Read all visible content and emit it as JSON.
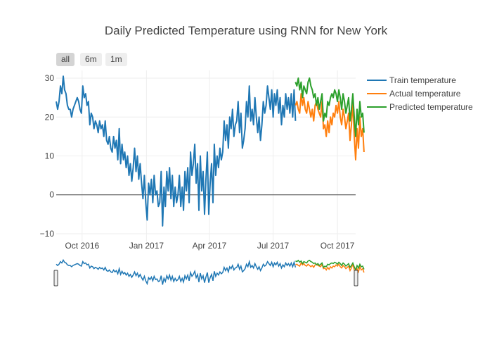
{
  "chart_data": {
    "type": "line",
    "title": "Daily Predicted Temperature using RNN for New York",
    "xlabel": "",
    "ylabel": "",
    "x_range": [
      "2016-08-25",
      "2017-10-27"
    ],
    "ylim": [
      -12,
      32
    ],
    "y_ticks": [
      30,
      20,
      10,
      0,
      -10
    ],
    "y_tick_labels": [
      "30",
      "20",
      "10",
      "0",
      "−10"
    ],
    "x_ticks": [
      "2016-10-01",
      "2017-01-01",
      "2017-04-01",
      "2017-07-01",
      "2017-10-01"
    ],
    "x_tick_labels": [
      "Oct 2016",
      "Jan 2017",
      "Apr 2017",
      "Jul 2017",
      "Oct 2017"
    ],
    "range_selector": [
      "all",
      "6m",
      "1m"
    ],
    "legend_position": "top-right",
    "series": [
      {
        "name": "Train temperature",
        "color": "#1f77b4",
        "start": "2016-08-25",
        "points": [
          [
            0,
            24
          ],
          [
            2,
            22
          ],
          [
            4,
            24
          ],
          [
            6,
            28
          ],
          [
            8,
            26
          ],
          [
            10,
            30.5
          ],
          [
            12,
            27
          ],
          [
            14,
            26
          ],
          [
            16,
            23
          ],
          [
            18,
            22
          ],
          [
            20,
            22
          ],
          [
            22,
            20
          ],
          [
            24,
            22
          ],
          [
            26,
            23
          ],
          [
            28,
            24
          ],
          [
            30,
            25
          ],
          [
            32,
            24
          ],
          [
            34,
            22
          ],
          [
            36,
            21
          ],
          [
            38,
            28
          ],
          [
            40,
            25
          ],
          [
            42,
            26
          ],
          [
            44,
            23
          ],
          [
            46,
            24
          ],
          [
            48,
            18
          ],
          [
            50,
            21
          ],
          [
            52,
            20
          ],
          [
            54,
            17
          ],
          [
            56,
            19
          ],
          [
            58,
            18
          ],
          [
            60,
            16
          ],
          [
            62,
            19
          ],
          [
            64,
            17
          ],
          [
            66,
            18
          ],
          [
            68,
            15
          ],
          [
            70,
            19
          ],
          [
            72,
            14
          ],
          [
            74,
            13
          ],
          [
            76,
            15
          ],
          [
            78,
            12
          ],
          [
            80,
            11
          ],
          [
            82,
            15
          ],
          [
            84,
            12
          ],
          [
            86,
            14
          ],
          [
            88,
            9
          ],
          [
            90,
            17
          ],
          [
            92,
            8
          ],
          [
            94,
            13
          ],
          [
            96,
            9
          ],
          [
            98,
            11
          ],
          [
            100,
            7
          ],
          [
            102,
            10
          ],
          [
            104,
            5
          ],
          [
            106,
            8
          ],
          [
            108,
            3.5
          ],
          [
            110,
            7
          ],
          [
            112,
            12
          ],
          [
            114,
            6
          ],
          [
            116,
            10
          ],
          [
            118,
            4
          ],
          [
            120,
            8
          ],
          [
            122,
            3
          ],
          [
            124,
            -1
          ],
          [
            126,
            5
          ],
          [
            128,
            -2
          ],
          [
            130,
            -6.5
          ],
          [
            132,
            3
          ],
          [
            134,
            0
          ],
          [
            136,
            4
          ],
          [
            138,
            -2
          ],
          [
            140,
            5
          ],
          [
            142,
            0
          ],
          [
            144,
            1
          ],
          [
            146,
            -3
          ],
          [
            148,
            -2
          ],
          [
            150,
            6
          ],
          [
            152,
            -8
          ],
          [
            154,
            2
          ],
          [
            156,
            -3
          ],
          [
            158,
            6
          ],
          [
            160,
            1
          ],
          [
            162,
            7
          ],
          [
            164,
            -1
          ],
          [
            166,
            5
          ],
          [
            168,
            -3
          ],
          [
            170,
            2
          ],
          [
            172,
            -2
          ],
          [
            174,
            0
          ],
          [
            176,
            5
          ],
          [
            178,
            -3
          ],
          [
            180,
            2
          ],
          [
            182,
            -4
          ],
          [
            184,
            6
          ],
          [
            186,
            1
          ],
          [
            188,
            7
          ],
          [
            190,
            -2
          ],
          [
            192,
            11
          ],
          [
            194,
            5
          ],
          [
            196,
            8
          ],
          [
            198,
            13
          ],
          [
            200,
            3
          ],
          [
            202,
            8
          ],
          [
            204,
            -4
          ],
          [
            206,
            10
          ],
          [
            208,
            1
          ],
          [
            210,
            6
          ],
          [
            212,
            -5
          ],
          [
            214,
            4
          ],
          [
            216,
            11
          ],
          [
            218,
            -5
          ],
          [
            220,
            3
          ],
          [
            222,
            8
          ],
          [
            224,
            -2
          ],
          [
            226,
            13
          ],
          [
            228,
            5
          ],
          [
            230,
            10
          ],
          [
            232,
            7
          ],
          [
            234,
            12
          ],
          [
            236,
            9
          ],
          [
            238,
            11
          ],
          [
            240,
            19
          ],
          [
            242,
            14
          ],
          [
            244,
            18
          ],
          [
            246,
            12
          ],
          [
            248,
            20
          ],
          [
            250,
            17
          ],
          [
            252,
            22
          ],
          [
            254,
            15
          ],
          [
            256,
            18
          ],
          [
            258,
            19
          ],
          [
            260,
            24
          ],
          [
            262,
            16
          ],
          [
            264,
            21
          ],
          [
            266,
            12
          ],
          [
            268,
            14
          ],
          [
            270,
            17
          ],
          [
            272,
            24
          ],
          [
            274,
            20
          ],
          [
            276,
            28
          ],
          [
            278,
            19
          ],
          [
            280,
            22
          ],
          [
            282,
            18
          ],
          [
            284,
            25
          ],
          [
            286,
            20
          ],
          [
            288,
            16
          ],
          [
            290,
            20
          ],
          [
            292,
            14
          ],
          [
            294,
            18
          ],
          [
            296,
            24
          ],
          [
            298,
            21
          ],
          [
            300,
            23
          ],
          [
            302,
            28
          ],
          [
            304,
            25
          ],
          [
            306,
            22
          ],
          [
            308,
            27
          ],
          [
            310,
            20
          ],
          [
            312,
            26
          ],
          [
            314,
            23
          ],
          [
            316,
            27
          ],
          [
            318,
            21
          ],
          [
            320,
            25
          ],
          [
            322,
            18
          ],
          [
            324,
            23
          ],
          [
            326,
            20
          ],
          [
            328,
            26
          ],
          [
            330,
            22
          ],
          [
            332,
            25
          ],
          [
            334,
            21
          ],
          [
            336,
            26
          ],
          [
            338,
            20
          ],
          [
            340,
            27
          ],
          [
            342,
            19
          ]
        ]
      },
      {
        "name": "Actual temperature",
        "color": "#ff7f0e",
        "start": "2016-08-25",
        "points": [
          [
            342,
            23
          ],
          [
            344,
            24
          ],
          [
            346,
            22
          ],
          [
            348,
            21
          ],
          [
            350,
            26
          ],
          [
            352,
            23
          ],
          [
            354,
            25
          ],
          [
            356,
            22
          ],
          [
            358,
            21
          ],
          [
            360,
            24
          ],
          [
            362,
            22
          ],
          [
            364,
            20
          ],
          [
            366,
            22
          ],
          [
            368,
            19
          ],
          [
            370,
            23
          ],
          [
            372,
            24
          ],
          [
            374,
            22
          ],
          [
            376,
            21
          ],
          [
            378,
            20
          ],
          [
            380,
            24
          ],
          [
            382,
            17
          ],
          [
            384,
            18
          ],
          [
            386,
            15
          ],
          [
            388,
            19
          ],
          [
            390,
            16
          ],
          [
            392,
            20
          ],
          [
            394,
            18
          ],
          [
            396,
            21
          ],
          [
            398,
            20
          ],
          [
            400,
            23
          ],
          [
            402,
            21
          ],
          [
            404,
            24
          ],
          [
            406,
            20
          ],
          [
            408,
            18
          ],
          [
            410,
            22
          ],
          [
            412,
            20
          ],
          [
            414,
            17
          ],
          [
            416,
            19
          ],
          [
            418,
            21
          ],
          [
            420,
            14
          ],
          [
            422,
            18
          ],
          [
            424,
            24
          ],
          [
            426,
            15
          ],
          [
            428,
            9
          ],
          [
            430,
            17
          ],
          [
            432,
            12
          ],
          [
            434,
            20
          ],
          [
            436,
            15
          ],
          [
            438,
            17
          ],
          [
            440,
            11
          ]
        ]
      },
      {
        "name": "Predicted temperature",
        "color": "#2ca02c",
        "start": "2016-08-25",
        "points": [
          [
            342,
            29
          ],
          [
            344,
            28
          ],
          [
            346,
            30
          ],
          [
            348,
            27
          ],
          [
            350,
            29
          ],
          [
            352,
            25
          ],
          [
            354,
            28
          ],
          [
            356,
            27
          ],
          [
            358,
            26
          ],
          [
            360,
            29
          ],
          [
            362,
            30
          ],
          [
            364,
            28
          ],
          [
            366,
            27
          ],
          [
            368,
            25
          ],
          [
            370,
            26
          ],
          [
            372,
            23
          ],
          [
            374,
            25
          ],
          [
            376,
            22
          ],
          [
            378,
            24
          ],
          [
            380,
            26
          ],
          [
            382,
            19
          ],
          [
            384,
            21
          ],
          [
            386,
            20
          ],
          [
            388,
            24
          ],
          [
            390,
            23
          ],
          [
            392,
            25
          ],
          [
            394,
            26
          ],
          [
            396,
            25
          ],
          [
            398,
            27
          ],
          [
            400,
            26
          ],
          [
            402,
            24
          ],
          [
            404,
            27
          ],
          [
            406,
            25
          ],
          [
            408,
            22
          ],
          [
            410,
            26
          ],
          [
            412,
            24
          ],
          [
            414,
            21
          ],
          [
            416,
            23
          ],
          [
            418,
            25
          ],
          [
            420,
            19
          ],
          [
            422,
            22
          ],
          [
            424,
            26
          ],
          [
            426,
            20
          ],
          [
            428,
            15
          ],
          [
            430,
            22
          ],
          [
            432,
            18
          ],
          [
            434,
            24
          ],
          [
            436,
            20
          ],
          [
            438,
            21
          ],
          [
            440,
            16
          ]
        ]
      }
    ]
  }
}
